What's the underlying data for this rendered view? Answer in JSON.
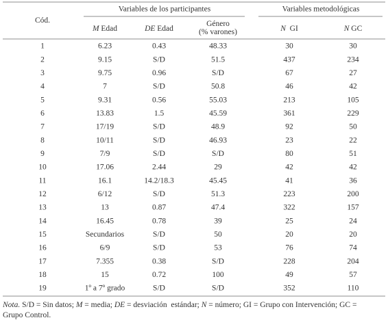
{
  "table": {
    "group_headers": [
      "Variables de los participantes",
      "Variables metodológicas"
    ],
    "columns": [
      [
        {
          "text": "Cód."
        }
      ],
      [
        {
          "text": "M",
          "italic": true
        },
        {
          "text": " Edad"
        }
      ],
      [
        {
          "text": "DE",
          "italic": true
        },
        {
          "text": " Edad"
        }
      ],
      [
        {
          "text": "Género"
        },
        {
          "text": "(% varones)",
          "newline": true
        }
      ],
      [
        {
          "text": "N",
          "italic": true
        },
        {
          "text": "  GI"
        }
      ],
      [
        {
          "text": "N",
          "italic": true
        },
        {
          "text": " GC"
        }
      ]
    ],
    "rows": [
      [
        "1",
        "6.23",
        "0.43",
        "48.33",
        "30",
        "30"
      ],
      [
        "2",
        "9.15",
        "S/D",
        "51.5",
        "437",
        "234"
      ],
      [
        "3",
        "9.75",
        "0.96",
        "S/D",
        "67",
        "27"
      ],
      [
        "4",
        "7",
        "S/D",
        "50.8",
        "46",
        "42"
      ],
      [
        "5",
        "9.31",
        "0.56",
        "55.03",
        "213",
        "105"
      ],
      [
        "6",
        "13.83",
        "1.5",
        "45.59",
        "361",
        "229"
      ],
      [
        "7",
        "17/19",
        "S/D",
        "48.9",
        "92",
        "50"
      ],
      [
        "8",
        "10/11",
        "S/D",
        "46.93",
        "23",
        "22"
      ],
      [
        "9",
        "7/9",
        "S/D",
        "S/D",
        "80",
        "51"
      ],
      [
        "10",
        "17.06",
        "2.44",
        "29",
        "42",
        "42"
      ],
      [
        "11",
        "16.1",
        "14.2/18.3",
        "45.45",
        "41",
        "36"
      ],
      [
        "12",
        "6/12",
        "S/D",
        "51.3",
        "223",
        "200"
      ],
      [
        "13",
        "13",
        "0.87",
        "47.4",
        "322",
        "157"
      ],
      [
        "14",
        "16.45",
        "0.78",
        "39",
        "25",
        "24"
      ],
      [
        "15",
        "Secundarios",
        "S/D",
        "50",
        "20",
        "20"
      ],
      [
        "16",
        "6/9",
        "S/D",
        "53",
        "76",
        "74"
      ],
      [
        "17",
        "7.355",
        "0.38",
        "S/D",
        "228",
        "204"
      ],
      [
        "18",
        "15",
        "0.72",
        "100",
        "49",
        "57"
      ],
      [
        "19",
        "1º a 7º grado",
        "S/D",
        "S/D",
        "352",
        "110"
      ]
    ],
    "note": [
      {
        "text": "Nota.",
        "italic": true
      },
      {
        "text": " S/D = Sin datos; "
      },
      {
        "text": "M",
        "italic": true
      },
      {
        "text": " = media; "
      },
      {
        "text": "DE",
        "italic": true
      },
      {
        "text": " = desviación  estándar; "
      },
      {
        "text": "N",
        "italic": true
      },
      {
        "text": " = número; GI = Grupo con Intervención; GC ="
      },
      {
        "text": "Grupo Control.",
        "newline": true
      }
    ]
  }
}
